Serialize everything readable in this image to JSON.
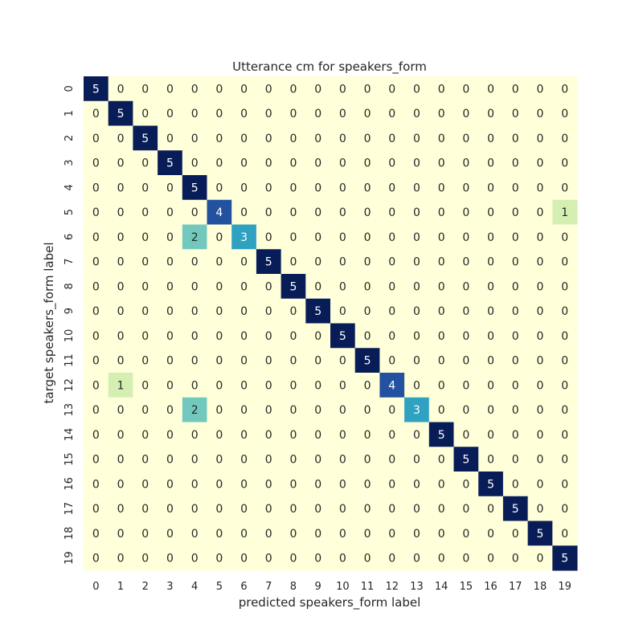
{
  "chart_data": {
    "type": "heatmap",
    "title": "Utterance cm for speakers_form",
    "xlabel": "predicted speakers_form label",
    "ylabel": "target speakers_form label",
    "x_categories": [
      "0",
      "1",
      "2",
      "3",
      "4",
      "5",
      "6",
      "7",
      "8",
      "9",
      "10",
      "11",
      "12",
      "13",
      "14",
      "15",
      "16",
      "17",
      "18",
      "19"
    ],
    "y_categories": [
      "0",
      "1",
      "2",
      "3",
      "4",
      "5",
      "6",
      "7",
      "8",
      "9",
      "10",
      "11",
      "12",
      "13",
      "14",
      "15",
      "16",
      "17",
      "18",
      "19"
    ],
    "values": [
      [
        5,
        0,
        0,
        0,
        0,
        0,
        0,
        0,
        0,
        0,
        0,
        0,
        0,
        0,
        0,
        0,
        0,
        0,
        0,
        0
      ],
      [
        0,
        5,
        0,
        0,
        0,
        0,
        0,
        0,
        0,
        0,
        0,
        0,
        0,
        0,
        0,
        0,
        0,
        0,
        0,
        0
      ],
      [
        0,
        0,
        5,
        0,
        0,
        0,
        0,
        0,
        0,
        0,
        0,
        0,
        0,
        0,
        0,
        0,
        0,
        0,
        0,
        0
      ],
      [
        0,
        0,
        0,
        5,
        0,
        0,
        0,
        0,
        0,
        0,
        0,
        0,
        0,
        0,
        0,
        0,
        0,
        0,
        0,
        0
      ],
      [
        0,
        0,
        0,
        0,
        5,
        0,
        0,
        0,
        0,
        0,
        0,
        0,
        0,
        0,
        0,
        0,
        0,
        0,
        0,
        0
      ],
      [
        0,
        0,
        0,
        0,
        0,
        4,
        0,
        0,
        0,
        0,
        0,
        0,
        0,
        0,
        0,
        0,
        0,
        0,
        0,
        1
      ],
      [
        0,
        0,
        0,
        0,
        2,
        0,
        3,
        0,
        0,
        0,
        0,
        0,
        0,
        0,
        0,
        0,
        0,
        0,
        0,
        0
      ],
      [
        0,
        0,
        0,
        0,
        0,
        0,
        0,
        5,
        0,
        0,
        0,
        0,
        0,
        0,
        0,
        0,
        0,
        0,
        0,
        0
      ],
      [
        0,
        0,
        0,
        0,
        0,
        0,
        0,
        0,
        5,
        0,
        0,
        0,
        0,
        0,
        0,
        0,
        0,
        0,
        0,
        0
      ],
      [
        0,
        0,
        0,
        0,
        0,
        0,
        0,
        0,
        0,
        5,
        0,
        0,
        0,
        0,
        0,
        0,
        0,
        0,
        0,
        0
      ],
      [
        0,
        0,
        0,
        0,
        0,
        0,
        0,
        0,
        0,
        0,
        5,
        0,
        0,
        0,
        0,
        0,
        0,
        0,
        0,
        0
      ],
      [
        0,
        0,
        0,
        0,
        0,
        0,
        0,
        0,
        0,
        0,
        0,
        5,
        0,
        0,
        0,
        0,
        0,
        0,
        0,
        0
      ],
      [
        0,
        1,
        0,
        0,
        0,
        0,
        0,
        0,
        0,
        0,
        0,
        0,
        4,
        0,
        0,
        0,
        0,
        0,
        0,
        0
      ],
      [
        0,
        0,
        0,
        0,
        2,
        0,
        0,
        0,
        0,
        0,
        0,
        0,
        0,
        3,
        0,
        0,
        0,
        0,
        0,
        0
      ],
      [
        0,
        0,
        0,
        0,
        0,
        0,
        0,
        0,
        0,
        0,
        0,
        0,
        0,
        0,
        5,
        0,
        0,
        0,
        0,
        0
      ],
      [
        0,
        0,
        0,
        0,
        0,
        0,
        0,
        0,
        0,
        0,
        0,
        0,
        0,
        0,
        0,
        5,
        0,
        0,
        0,
        0
      ],
      [
        0,
        0,
        0,
        0,
        0,
        0,
        0,
        0,
        0,
        0,
        0,
        0,
        0,
        0,
        0,
        0,
        5,
        0,
        0,
        0
      ],
      [
        0,
        0,
        0,
        0,
        0,
        0,
        0,
        0,
        0,
        0,
        0,
        0,
        0,
        0,
        0,
        0,
        0,
        5,
        0,
        0
      ],
      [
        0,
        0,
        0,
        0,
        0,
        0,
        0,
        0,
        0,
        0,
        0,
        0,
        0,
        0,
        0,
        0,
        0,
        0,
        5,
        0
      ],
      [
        0,
        0,
        0,
        0,
        0,
        0,
        0,
        0,
        0,
        0,
        0,
        0,
        0,
        0,
        0,
        0,
        0,
        0,
        0,
        5
      ]
    ],
    "value_range": [
      0,
      5
    ],
    "colormap": {
      "0": "#ffffd9",
      "1": "#d5efb3",
      "2": "#73c8bd",
      "3": "#2fa1c1",
      "4": "#2251a0",
      "5": "#081d58"
    },
    "grid": false,
    "colorbar": false
  }
}
